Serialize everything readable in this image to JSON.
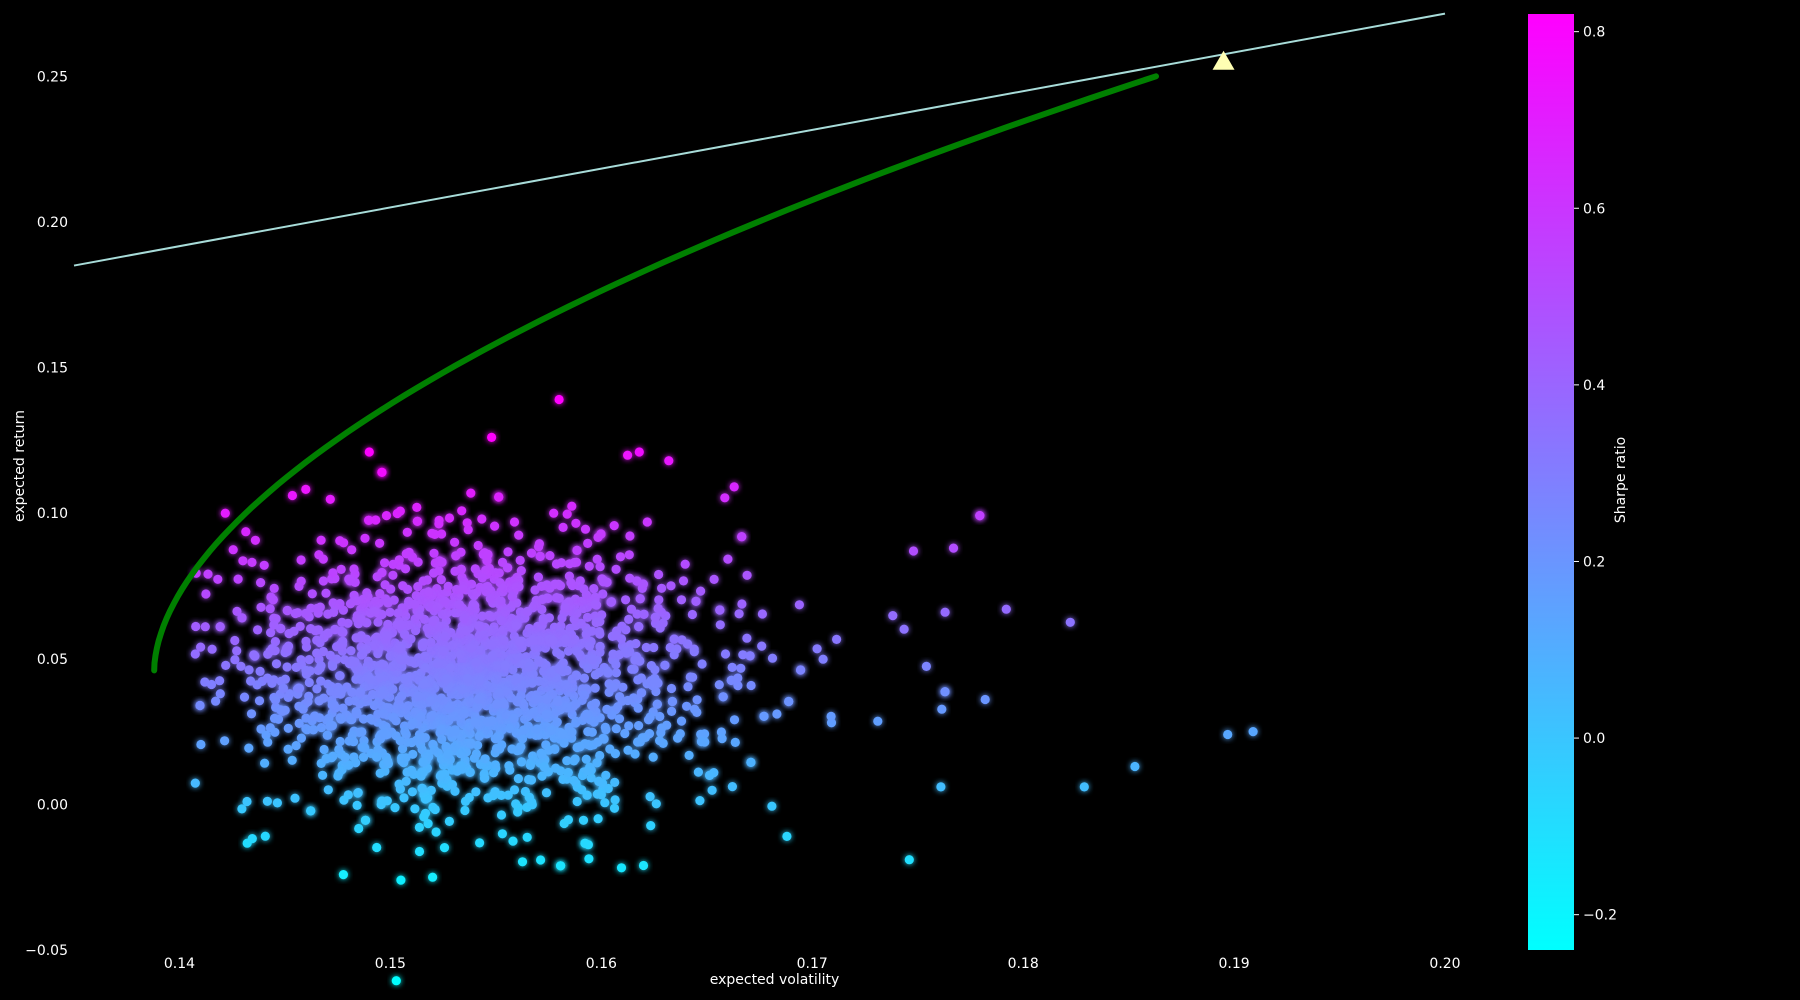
{
  "chart_data": {
    "type": "scatter",
    "title": "",
    "xlabel": "expected volatility",
    "ylabel": "expected return",
    "colorbar_label": "Sharpe ratio",
    "xlim": [
      0.135,
      0.2
    ],
    "ylim": [
      -0.05,
      0.27
    ],
    "x_ticks": [
      "0.14",
      "0.15",
      "0.16",
      "0.17",
      "0.18",
      "0.19",
      "0.20"
    ],
    "y_ticks": [
      "−0.05",
      "0.00",
      "0.05",
      "0.10",
      "0.15",
      "0.20",
      "0.25"
    ],
    "colorbar_ticks": [
      "−0.2",
      "0.0",
      "0.2",
      "0.4",
      "0.6",
      "0.8"
    ],
    "colorbar_range": [
      -0.24,
      0.82
    ],
    "colors": {
      "background": "#000000",
      "cmap_low": "#00ffff",
      "cmap_high": "#ff00ff",
      "frontier": "#008000",
      "cml": "#a8dcd9",
      "tangency": "#ffffb3"
    },
    "grid": false,
    "capital_market_line": {
      "x": [
        0.135,
        0.2
      ],
      "y": [
        0.185,
        0.2715
      ]
    },
    "efficient_frontier": {
      "min_vol": 0.1388,
      "min_ret": 0.046,
      "max_vol": 0.1863,
      "max_ret": 0.25
    },
    "tangency_portfolio": {
      "x": 0.1895,
      "y": 0.255
    },
    "scatter_cloud": {
      "n": 2200,
      "center_x": 0.1525,
      "center_y": 0.045,
      "note_points": [
        [
          0.158,
          0.139
        ],
        [
          0.149,
          0.121
        ],
        [
          0.1548,
          0.126
        ],
        [
          0.1618,
          0.121
        ],
        [
          0.1632,
          0.118
        ],
        [
          0.1663,
          0.109
        ],
        [
          0.1767,
          0.088
        ],
        [
          0.1748,
          0.087
        ],
        [
          0.1792,
          0.067
        ],
        [
          0.1763,
          0.066
        ],
        [
          0.1782,
          0.036
        ],
        [
          0.1909,
          0.025
        ],
        [
          0.1897,
          0.024
        ],
        [
          0.1853,
          0.013
        ],
        [
          0.1829,
          0.006
        ],
        [
          0.1761,
          0.006
        ],
        [
          0.1746,
          -0.019
        ],
        [
          0.162,
          -0.021
        ],
        [
          0.1505,
          -0.026
        ],
        [
          0.152,
          -0.025
        ],
        [
          0.1432,
          0.001
        ],
        [
          0.141,
          0.054
        ],
        [
          0.1412,
          0.042
        ],
        [
          0.1688,
          -0.011
        ]
      ]
    }
  }
}
